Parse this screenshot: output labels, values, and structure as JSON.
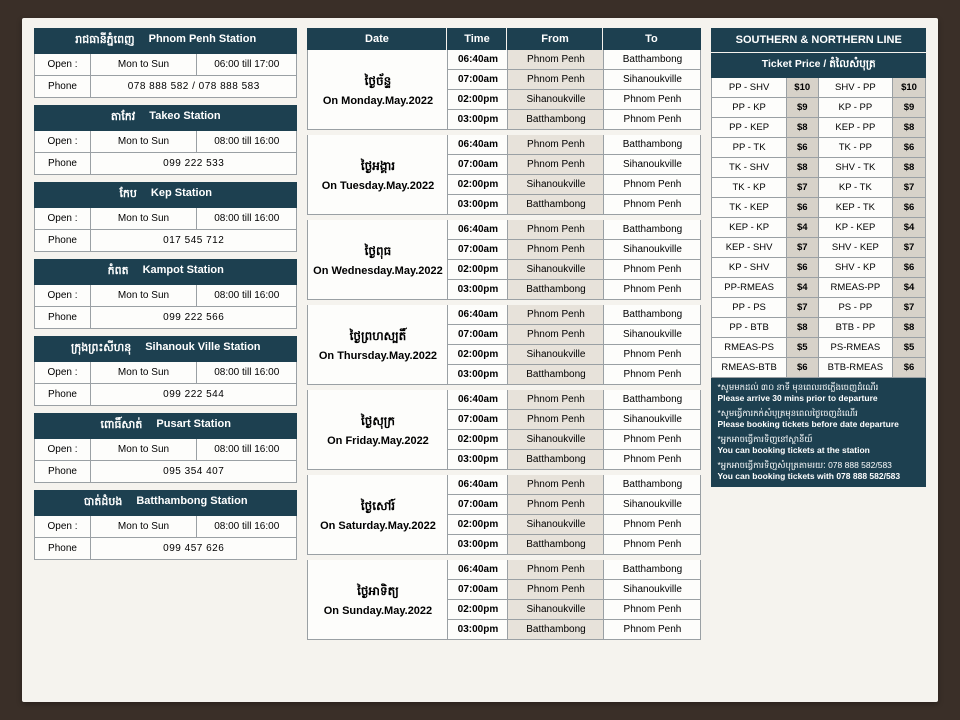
{
  "colors": {
    "header_bg": "#1d4050",
    "header_fg": "#ffffff",
    "paper_bg": "#f5f3ee",
    "cell_bg": "#fdfdfb",
    "alt_bg": "#e7e2da",
    "price_alt_bg": "#d7d2c9",
    "border": "#9aa0a4",
    "page_bg": "#3a2f28"
  },
  "stations": [
    {
      "kh": "រាជធានីភ្នំពេញ",
      "en": "Phnom Penh Station",
      "days": "Mon to Sun",
      "hours": "06:00 till 17:00",
      "phone": "078 888 582 / 078 888 583"
    },
    {
      "kh": "តាកែវ",
      "en": "Takeo Station",
      "days": "Mon to Sun",
      "hours": "08:00 till 16:00",
      "phone": "099 222 533"
    },
    {
      "kh": "កែប",
      "en": "Kep Station",
      "days": "Mon to Sun",
      "hours": "08:00 till 16:00",
      "phone": "017 545 712"
    },
    {
      "kh": "កំពត",
      "en": "Kampot Station",
      "days": "Mon to Sun",
      "hours": "08:00 till 16:00",
      "phone": "099 222 566"
    },
    {
      "kh": "ក្រុងព្រះសីហនុ",
      "en": "Sihanouk Ville Station",
      "days": "Mon to Sun",
      "hours": "08:00 till 16:00",
      "phone": "099 222 544"
    },
    {
      "kh": "ពោធិ៍សាត់",
      "en": "Pusart Station",
      "days": "Mon to Sun",
      "hours": "08:00 till 16:00",
      "phone": "095 354 407"
    },
    {
      "kh": "បាត់ដំបង",
      "en": "Batthambong Station",
      "days": "Mon to Sun",
      "hours": "08:00 till 16:00",
      "phone": "099 457 626"
    }
  ],
  "station_labels": {
    "open": "Open :",
    "phone": "Phone"
  },
  "schedule": {
    "headers": {
      "date": "Date",
      "time": "Time",
      "from": "From",
      "to": "To"
    },
    "days": [
      {
        "kh": "ថ្ងៃច័ន្ទ",
        "en": "On Monday.May.2022"
      },
      {
        "kh": "ថ្ងៃអង្គារ",
        "en": "On Tuesday.May.2022"
      },
      {
        "kh": "ថ្ងៃពុធ",
        "en": "On Wednesday.May.2022"
      },
      {
        "kh": "ថ្ងៃព្រហស្បតិ៍",
        "en": "On Thursday.May.2022"
      },
      {
        "kh": "ថ្ងៃសុក្រ",
        "en": "On Friday.May.2022"
      },
      {
        "kh": "ថ្ងៃសៅរ៍",
        "en": "On Saturday.May.2022"
      },
      {
        "kh": "ថ្ងៃអាទិត្យ",
        "en": "On Sunday.May.2022"
      }
    ],
    "trips": [
      {
        "time": "06:40am",
        "from": "Phnom Penh",
        "to": "Batthambong"
      },
      {
        "time": "07:00am",
        "from": "Phnom Penh",
        "to": "Sihanoukville"
      },
      {
        "time": "02:00pm",
        "from": "Sihanoukville",
        "to": "Phnom Penh"
      },
      {
        "time": "03:00pm",
        "from": "Batthambong",
        "to": "Phnom Penh"
      }
    ]
  },
  "prices": {
    "title": "SOUTHERN & NORTHERN LINE",
    "subtitle": "Ticket Price / តំលៃសំបុត្រ",
    "rows": [
      {
        "a": "PP - SHV",
        "pa": "$10",
        "b": "SHV - PP",
        "pb": "$10"
      },
      {
        "a": "PP - KP",
        "pa": "$9",
        "b": "KP - PP",
        "pb": "$9"
      },
      {
        "a": "PP - KEP",
        "pa": "$8",
        "b": "KEP - PP",
        "pb": "$8"
      },
      {
        "a": "PP - TK",
        "pa": "$6",
        "b": "TK - PP",
        "pb": "$6"
      },
      {
        "a": "TK - SHV",
        "pa": "$8",
        "b": "SHV - TK",
        "pb": "$8"
      },
      {
        "a": "TK - KP",
        "pa": "$7",
        "b": "KP - TK",
        "pb": "$7"
      },
      {
        "a": "TK - KEP",
        "pa": "$6",
        "b": "KEP - TK",
        "pb": "$6"
      },
      {
        "a": "KEP - KP",
        "pa": "$4",
        "b": "KP - KEP",
        "pb": "$4"
      },
      {
        "a": "KEP - SHV",
        "pa": "$7",
        "b": "SHV - KEP",
        "pb": "$7"
      },
      {
        "a": "KP - SHV",
        "pa": "$6",
        "b": "SHV - KP",
        "pb": "$6"
      },
      {
        "a": "PP-RMEAS",
        "pa": "$4",
        "b": "RMEAS-PP",
        "pb": "$4"
      },
      {
        "a": "PP - PS",
        "pa": "$7",
        "b": "PS - PP",
        "pb": "$7"
      },
      {
        "a": "PP - BTB",
        "pa": "$8",
        "b": "BTB - PP",
        "pb": "$8"
      },
      {
        "a": "RMEAS-PS",
        "pa": "$5",
        "b": "PS-RMEAS",
        "pb": "$5"
      },
      {
        "a": "RMEAS-BTB",
        "pa": "$6",
        "b": "BTB-RMEAS",
        "pb": "$6"
      }
    ],
    "notes": [
      {
        "kh": "*សូមមកដល់ ៣០ នាទី មុនពេលរថភ្លើងចេញដំណើរ",
        "en": "Please arrive 30 mins prior to departure"
      },
      {
        "kh": "*សូមធ្វើការកក់សំបុត្រមុនពេលថ្ងៃចេញដំណើរ",
        "en": "Please booking tickets before date departure"
      },
      {
        "kh": "*អ្នកអាចធ្វើការទិញនៅស្ថានីយ៍",
        "en": "You can booking tickets at the station"
      },
      {
        "kh": "*អ្នកអាចធ្វើការទិញសំបុត្រតាមរយៈ 078 888 582/583",
        "en": "You can booking tickets with 078 888 582/583"
      }
    ]
  }
}
